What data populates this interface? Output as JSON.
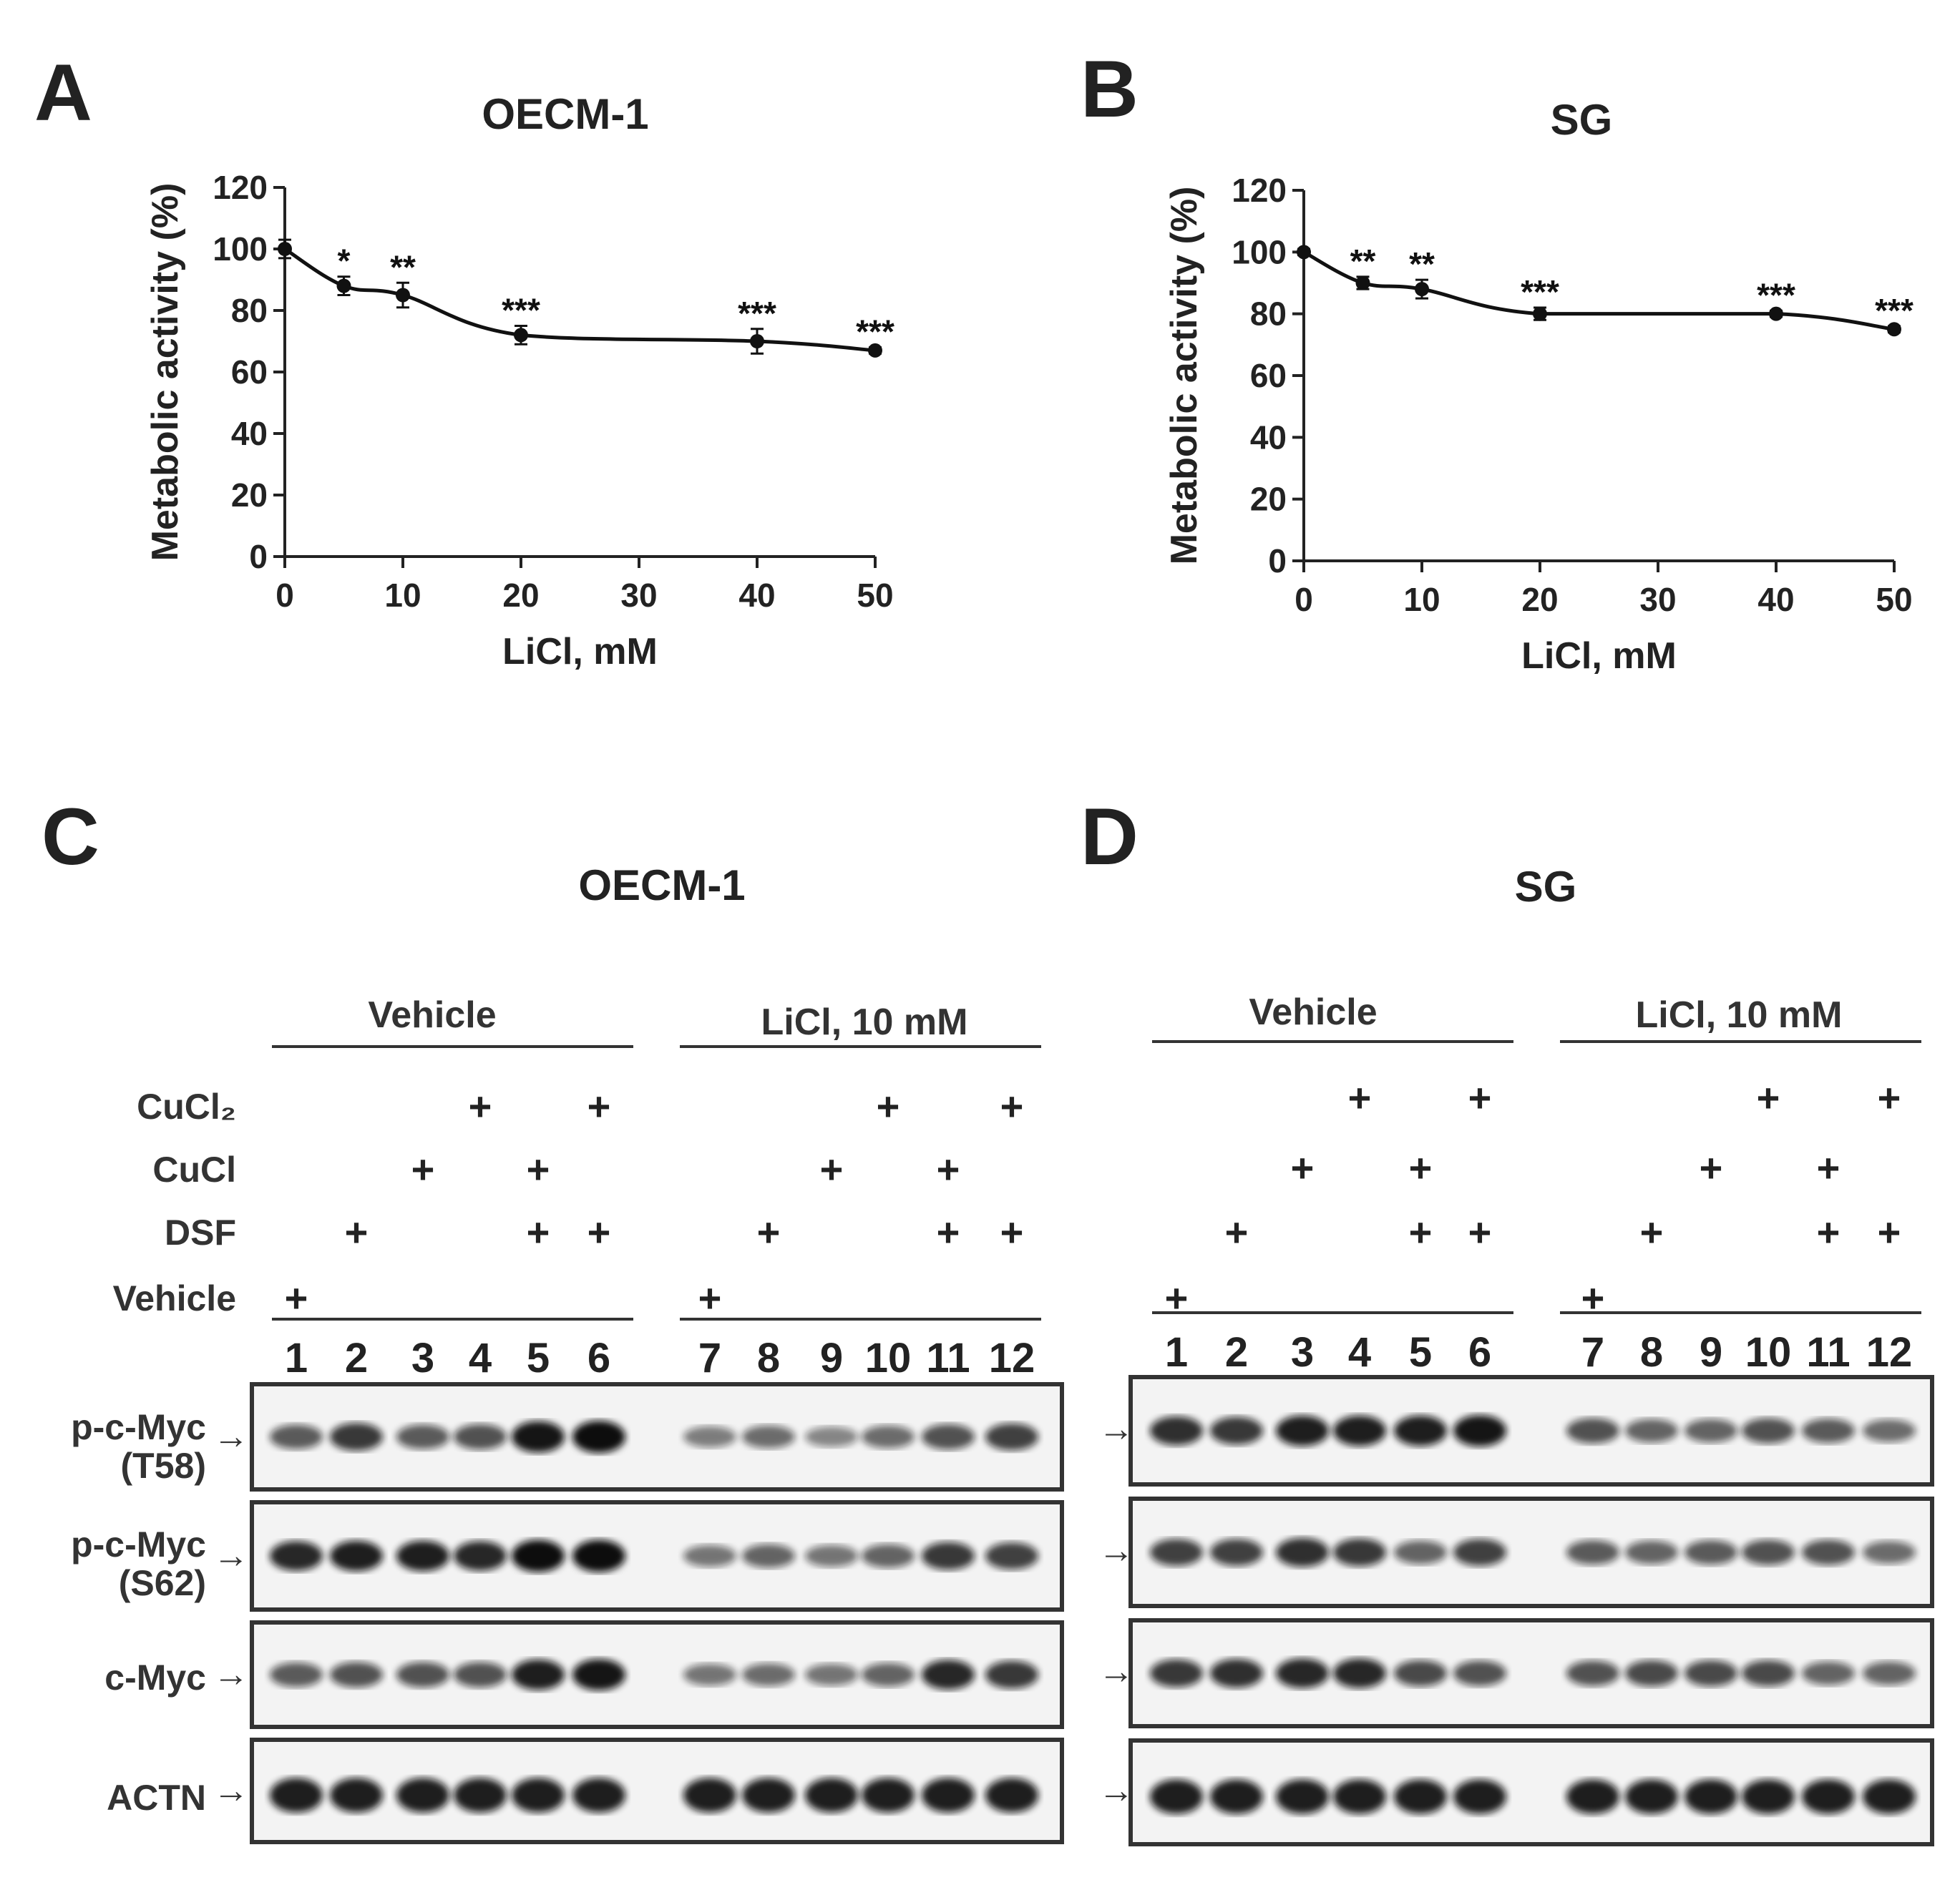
{
  "chart_data": [
    {
      "panel": "A",
      "type": "line",
      "title": "OECM-1",
      "xlabel": "LiCl, mM",
      "ylabel": "Metabolic activity (%)",
      "xlim": [
        0,
        50
      ],
      "ylim": [
        0,
        120
      ],
      "xticks": [
        0,
        10,
        20,
        30,
        40,
        50
      ],
      "yticks": [
        0,
        20,
        40,
        60,
        80,
        100,
        120
      ],
      "x": [
        0,
        5,
        10,
        20,
        40,
        50
      ],
      "y": [
        100,
        88,
        85,
        72,
        70,
        67
      ],
      "error": [
        3,
        3,
        4,
        3,
        4,
        1
      ],
      "annotations": [
        "",
        "*",
        "**",
        "***",
        "***",
        "***"
      ]
    },
    {
      "panel": "B",
      "type": "line",
      "title": "SG",
      "xlabel": "LiCl, mM",
      "ylabel": "Metabolic activity (%)",
      "xlim": [
        0,
        50
      ],
      "ylim": [
        0,
        120
      ],
      "xticks": [
        0,
        10,
        20,
        30,
        40,
        50
      ],
      "yticks": [
        0,
        20,
        40,
        60,
        80,
        100,
        120
      ],
      "x": [
        0,
        5,
        10,
        20,
        40,
        50
      ],
      "y": [
        100,
        90,
        88,
        80,
        80,
        75
      ],
      "error": [
        1,
        2,
        3,
        2,
        1,
        1
      ],
      "annotations": [
        "",
        "**",
        "**",
        "***",
        "***",
        "***"
      ]
    }
  ],
  "blots": [
    {
      "panel": "C",
      "title": "OECM-1",
      "groups": [
        "Vehicle",
        "LiCl, 10 mM"
      ],
      "treatments": [
        "CuCl₂",
        "CuCl",
        "DSF",
        "Vehicle"
      ],
      "lanes": [
        "1",
        "2",
        "3",
        "4",
        "5",
        "6",
        "7",
        "8",
        "9",
        "10",
        "11",
        "12"
      ],
      "plus_matrix": [
        [
          0,
          0,
          0,
          1,
          0,
          1,
          0,
          0,
          0,
          1,
          0,
          1
        ],
        [
          0,
          0,
          1,
          0,
          1,
          0,
          0,
          0,
          1,
          0,
          1,
          0
        ],
        [
          0,
          1,
          0,
          0,
          1,
          1,
          0,
          1,
          0,
          0,
          1,
          1
        ],
        [
          1,
          0,
          0,
          0,
          0,
          0,
          1,
          0,
          0,
          0,
          0,
          0
        ]
      ],
      "plus_symbol": "+",
      "arrow_symbol": "→",
      "rows": [
        {
          "label": [
            "p-c-Myc",
            "(T58)"
          ],
          "intensity": [
            0.55,
            0.75,
            0.55,
            0.6,
            0.95,
            1.0,
            0.35,
            0.45,
            0.3,
            0.45,
            0.6,
            0.7
          ]
        },
        {
          "label": [
            "p-c-Myc",
            "(S62)"
          ],
          "intensity": [
            0.85,
            0.9,
            0.9,
            0.85,
            1.0,
            1.0,
            0.4,
            0.5,
            0.4,
            0.5,
            0.75,
            0.7
          ]
        },
        {
          "label": [
            "c-Myc"
          ],
          "intensity": [
            0.55,
            0.6,
            0.6,
            0.6,
            0.9,
            0.95,
            0.4,
            0.45,
            0.4,
            0.5,
            0.85,
            0.75
          ]
        },
        {
          "label": [
            "ACTN"
          ],
          "intensity": [
            0.9,
            0.9,
            0.9,
            0.9,
            0.9,
            0.9,
            0.9,
            0.9,
            0.9,
            0.9,
            0.9,
            0.9
          ]
        }
      ]
    },
    {
      "panel": "D",
      "title": "SG",
      "groups": [
        "Vehicle",
        "LiCl, 10 mM"
      ],
      "plus_matrix": [
        [
          0,
          0,
          0,
          1,
          0,
          1,
          0,
          0,
          0,
          1,
          0,
          1
        ],
        [
          0,
          0,
          1,
          0,
          1,
          0,
          0,
          0,
          1,
          0,
          1,
          0
        ],
        [
          0,
          1,
          0,
          0,
          1,
          1,
          0,
          1,
          0,
          0,
          1,
          1
        ],
        [
          1,
          0,
          0,
          0,
          0,
          0,
          1,
          0,
          0,
          0,
          0,
          0
        ]
      ],
      "lanes": [
        "1",
        "2",
        "3",
        "4",
        "5",
        "6",
        "7",
        "8",
        "9",
        "10",
        "11",
        "12"
      ],
      "rows": [
        {
          "intensity": [
            0.8,
            0.75,
            0.9,
            0.9,
            0.9,
            0.95,
            0.6,
            0.5,
            0.5,
            0.6,
            0.55,
            0.45
          ]
        },
        {
          "intensity": [
            0.7,
            0.7,
            0.8,
            0.75,
            0.5,
            0.7,
            0.55,
            0.5,
            0.55,
            0.6,
            0.6,
            0.45
          ]
        },
        {
          "intensity": [
            0.75,
            0.8,
            0.85,
            0.85,
            0.65,
            0.6,
            0.6,
            0.65,
            0.65,
            0.65,
            0.5,
            0.5
          ]
        },
        {
          "intensity": [
            0.9,
            0.9,
            0.9,
            0.9,
            0.9,
            0.9,
            0.9,
            0.9,
            0.9,
            0.9,
            0.9,
            0.9
          ]
        }
      ]
    }
  ],
  "panel_letters": [
    "A",
    "B",
    "C",
    "D"
  ]
}
